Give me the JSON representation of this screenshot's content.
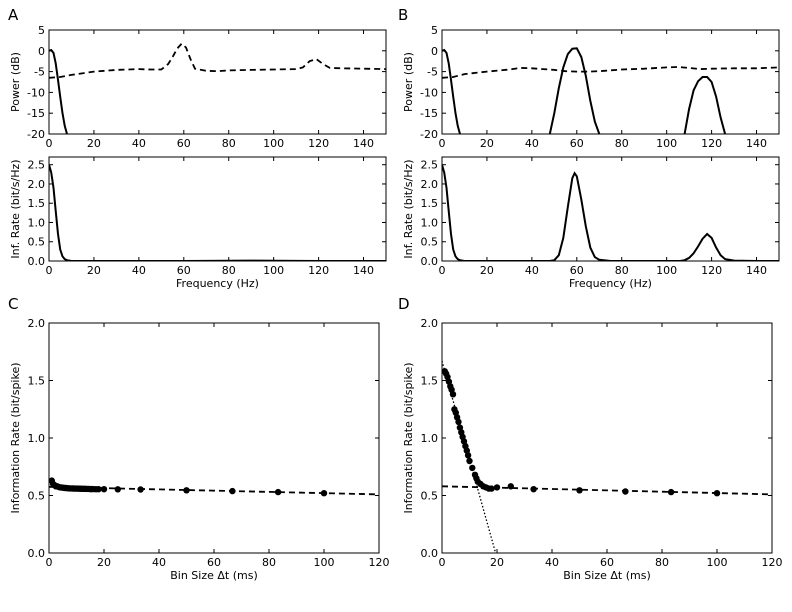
{
  "panel_letters": {
    "A": "A",
    "B": "B",
    "C": "C",
    "D": "D"
  },
  "chart_data": [
    {
      "id": "A-top",
      "type": "line",
      "xlabel": "",
      "ylabel": "Power (dB)",
      "xlim": [
        0,
        150
      ],
      "ylim": [
        -20,
        5
      ],
      "xticks": [
        0,
        20,
        40,
        60,
        80,
        100,
        120,
        140
      ],
      "yticks": [
        -20,
        -15,
        -10,
        -5,
        0,
        5
      ],
      "series": [
        {
          "style": "solid",
          "x": [
            0,
            1,
            2,
            3,
            4,
            5,
            6,
            7,
            8
          ],
          "y": [
            0,
            0.2,
            -0.5,
            -3,
            -7,
            -11,
            -15,
            -18,
            -20
          ]
        },
        {
          "style": "dashed",
          "x": [
            0,
            5,
            10,
            20,
            30,
            40,
            45,
            50,
            53,
            55,
            57,
            59,
            61,
            63,
            65,
            70,
            75,
            80,
            90,
            100,
            110,
            113,
            116,
            119,
            122,
            125,
            130,
            140,
            150
          ],
          "y": [
            -6.5,
            -6.3,
            -5.8,
            -5.0,
            -4.6,
            -4.4,
            -4.5,
            -4.5,
            -3.2,
            -1.5,
            0.5,
            1.7,
            0.8,
            -2,
            -4.3,
            -4.8,
            -4.9,
            -4.7,
            -4.6,
            -4.5,
            -4.4,
            -4.0,
            -2.5,
            -2.0,
            -3.2,
            -4.1,
            -4.2,
            -4.3,
            -4.4
          ]
        }
      ]
    },
    {
      "id": "A-bottom",
      "type": "line",
      "xlabel": "Frequency (Hz)",
      "ylabel": "Inf. Rate (bit/s/Hz)",
      "xlim": [
        0,
        150
      ],
      "ylim": [
        0,
        2.7
      ],
      "xticks": [
        0,
        20,
        40,
        60,
        80,
        100,
        120,
        140
      ],
      "yticks": [
        0.0,
        0.5,
        1.0,
        1.5,
        2.0,
        2.5
      ],
      "series": [
        {
          "style": "solid",
          "x": [
            0,
            1,
            2,
            3,
            4,
            5,
            6,
            7,
            8,
            10,
            15,
            20,
            60,
            90,
            120,
            150
          ],
          "y": [
            2.5,
            2.3,
            1.9,
            1.3,
            0.7,
            0.3,
            0.12,
            0.05,
            0.02,
            0.0,
            0.0,
            0.0,
            0.0,
            0.01,
            0.0,
            0.0
          ]
        }
      ]
    },
    {
      "id": "B-top",
      "type": "line",
      "xlabel": "",
      "ylabel": "Power (dB)",
      "xlim": [
        0,
        150
      ],
      "ylim": [
        -20,
        5
      ],
      "xticks": [
        0,
        20,
        40,
        60,
        80,
        100,
        120,
        140
      ],
      "yticks": [
        -20,
        -15,
        -10,
        -5,
        0,
        5
      ],
      "series": [
        {
          "style": "solid",
          "x": [
            0,
            1,
            2,
            3,
            4,
            5,
            6,
            7,
            8
          ],
          "y": [
            0,
            0.2,
            -0.5,
            -3,
            -7,
            -11,
            -15,
            -18,
            -20
          ]
        },
        {
          "style": "solid",
          "x": [
            48,
            50,
            52,
            54,
            56,
            58,
            60,
            62,
            64,
            66,
            68,
            70
          ],
          "y": [
            -20,
            -15,
            -9,
            -4,
            -0.8,
            0.5,
            0.6,
            -1.5,
            -6,
            -12,
            -17,
            -20
          ]
        },
        {
          "style": "solid",
          "x": [
            108,
            110,
            112,
            114,
            116,
            118,
            120,
            122,
            124,
            126
          ],
          "y": [
            -20,
            -14,
            -9.5,
            -7.3,
            -6.3,
            -6.3,
            -7.5,
            -11,
            -16,
            -20
          ]
        },
        {
          "style": "dashed",
          "x": [
            0,
            5,
            10,
            20,
            30,
            35,
            40,
            50,
            55,
            60,
            65,
            70,
            80,
            90,
            100,
            105,
            110,
            115,
            120,
            130,
            140,
            150
          ],
          "y": [
            -6.5,
            -6.3,
            -5.6,
            -5.0,
            -4.5,
            -4.1,
            -4.2,
            -4.6,
            -4.9,
            -5.0,
            -5.0,
            -4.9,
            -4.5,
            -4.3,
            -4.0,
            -3.9,
            -4.1,
            -4.4,
            -4.3,
            -4.2,
            -4.2,
            -4.0
          ]
        }
      ]
    },
    {
      "id": "B-bottom",
      "type": "line",
      "xlabel": "Frequency (Hz)",
      "ylabel": "Inf. Rate (bit/s/Hz)",
      "xlim": [
        0,
        150
      ],
      "ylim": [
        0,
        2.7
      ],
      "xticks": [
        0,
        20,
        40,
        60,
        80,
        100,
        120,
        140
      ],
      "yticks": [
        0.0,
        0.5,
        1.0,
        1.5,
        2.0,
        2.5
      ],
      "series": [
        {
          "style": "solid",
          "x": [
            0,
            1,
            2,
            3,
            4,
            5,
            6,
            7,
            8,
            10,
            15,
            20,
            30,
            40,
            48,
            50,
            52,
            54,
            56,
            58,
            59,
            60,
            62,
            64,
            66,
            68,
            70,
            75,
            80,
            90,
            100,
            106,
            108,
            110,
            112,
            114,
            116,
            118,
            120,
            122,
            124,
            126,
            130,
            140,
            150
          ],
          "y": [
            2.5,
            2.3,
            1.9,
            1.3,
            0.7,
            0.3,
            0.12,
            0.05,
            0.02,
            0.0,
            0.0,
            0.0,
            0.0,
            0.0,
            0.0,
            0.02,
            0.15,
            0.6,
            1.4,
            2.15,
            2.28,
            2.2,
            1.6,
            0.9,
            0.35,
            0.1,
            0.03,
            0.0,
            0.0,
            0.0,
            0.0,
            0.0,
            0.02,
            0.08,
            0.2,
            0.38,
            0.58,
            0.7,
            0.6,
            0.35,
            0.15,
            0.05,
            0.01,
            0.0,
            0.0
          ]
        }
      ]
    },
    {
      "id": "C",
      "type": "scatter",
      "xlabel": "Bin Size Δt (ms)",
      "ylabel": "Information Rate (bit/spike)",
      "xlim": [
        0,
        120
      ],
      "ylim": [
        0,
        2.0
      ],
      "xticks": [
        0,
        20,
        40,
        60,
        80,
        100,
        120
      ],
      "yticks": [
        0.0,
        0.5,
        1.0,
        1.5,
        2.0
      ],
      "points": {
        "x": [
          1,
          1.5,
          2,
          2.5,
          3,
          3.5,
          4,
          4.5,
          5,
          5.5,
          6,
          6.5,
          7,
          7.5,
          8,
          8.5,
          9,
          9.5,
          10,
          10.5,
          11,
          11.5,
          12,
          12.5,
          13,
          13.5,
          14,
          14.5,
          15,
          15.5,
          16,
          17,
          18,
          20,
          25,
          33.3,
          50,
          66.7,
          83.3,
          100
        ],
        "y": [
          0.63,
          0.6,
          0.59,
          0.58,
          0.58,
          0.575,
          0.57,
          0.57,
          0.568,
          0.566,
          0.565,
          0.564,
          0.563,
          0.562,
          0.562,
          0.561,
          0.561,
          0.56,
          0.56,
          0.56,
          0.559,
          0.559,
          0.558,
          0.558,
          0.558,
          0.557,
          0.557,
          0.557,
          0.556,
          0.556,
          0.556,
          0.555,
          0.555,
          0.555,
          0.554,
          0.552,
          0.545,
          0.538,
          0.53,
          0.52
        ]
      },
      "fits": [
        {
          "style": "dashed",
          "x": [
            0,
            120
          ],
          "y": [
            0.575,
            0.51
          ]
        }
      ]
    },
    {
      "id": "D",
      "type": "scatter",
      "xlabel": "Bin Size Δt (ms)",
      "ylabel": "Information Rate (bit/spike)",
      "xlim": [
        0,
        120
      ],
      "ylim": [
        0,
        2.0
      ],
      "xticks": [
        0,
        20,
        40,
        60,
        80,
        100,
        120
      ],
      "yticks": [
        0.0,
        0.5,
        1.0,
        1.5,
        2.0
      ],
      "points": {
        "x": [
          1,
          1.5,
          2,
          2.5,
          3,
          3.5,
          4,
          4.5,
          5,
          5.5,
          6,
          6.5,
          7,
          7.5,
          8,
          8.5,
          9,
          9.5,
          10,
          11,
          12,
          12.5,
          13,
          14,
          15,
          16,
          17,
          18,
          20,
          25,
          33.3,
          50,
          66.7,
          83.3,
          100
        ],
        "y": [
          1.58,
          1.56,
          1.53,
          1.49,
          1.45,
          1.42,
          1.38,
          1.25,
          1.22,
          1.18,
          1.14,
          1.09,
          1.05,
          1.01,
          0.97,
          0.93,
          0.89,
          0.85,
          0.8,
          0.74,
          0.68,
          0.65,
          0.62,
          0.6,
          0.58,
          0.57,
          0.56,
          0.56,
          0.57,
          0.58,
          0.555,
          0.545,
          0.535,
          0.53,
          0.52
        ]
      },
      "fits": [
        {
          "style": "dashed",
          "x": [
            0,
            120
          ],
          "y": [
            0.58,
            0.51
          ]
        },
        {
          "style": "dotted",
          "x": [
            0,
            19.5
          ],
          "y": [
            1.67,
            0.0
          ]
        }
      ]
    }
  ]
}
